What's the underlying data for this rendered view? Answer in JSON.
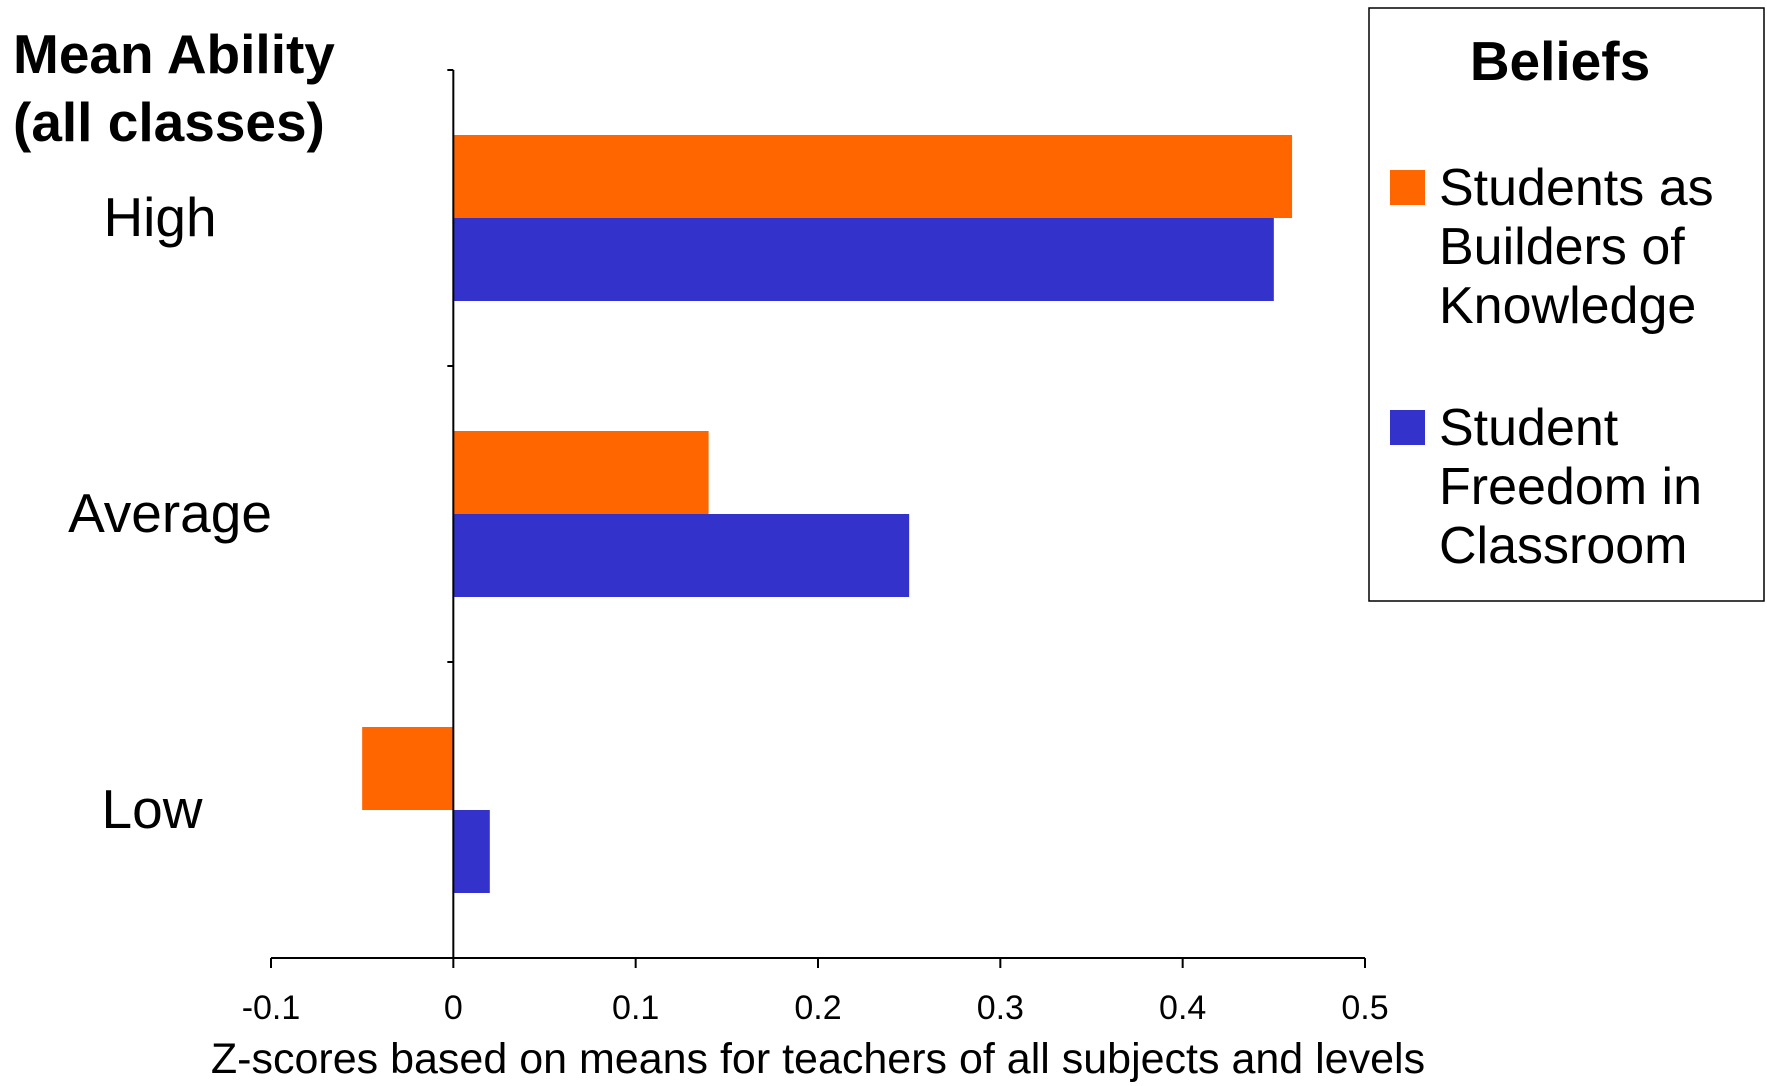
{
  "chart_data": {
    "type": "bar",
    "orientation": "horizontal",
    "ylabel": "Mean Ability (all classes)",
    "ylabel_lines": [
      "Mean Ability",
      "(all classes)"
    ],
    "xlabel": "Z-scores based on means for teachers of all subjects and levels",
    "categories": [
      "High",
      "Average",
      "Low"
    ],
    "series": [
      {
        "name": "Students as Builders of Knowledge",
        "name_lines": [
          "Students as",
          "Builders of",
          "Knowledge"
        ],
        "color": "#FF6600",
        "values": [
          0.46,
          0.14,
          -0.05
        ]
      },
      {
        "name": "Student Freedom in Classroom",
        "name_lines": [
          "Student",
          "Freedom in",
          "Classroom"
        ],
        "color": "#3333CC",
        "values": [
          0.45,
          0.25,
          0.02
        ]
      }
    ],
    "xlim": [
      -0.1,
      0.5
    ],
    "xticks": [
      -0.1,
      0,
      0.1,
      0.2,
      0.3,
      0.4,
      0.5
    ],
    "xtick_labels": [
      "-0.1",
      "0",
      "0.1",
      "0.2",
      "0.3",
      "0.4",
      "0.5"
    ],
    "grid": false,
    "legend": {
      "title": "Beliefs",
      "placement": "top-right"
    }
  }
}
